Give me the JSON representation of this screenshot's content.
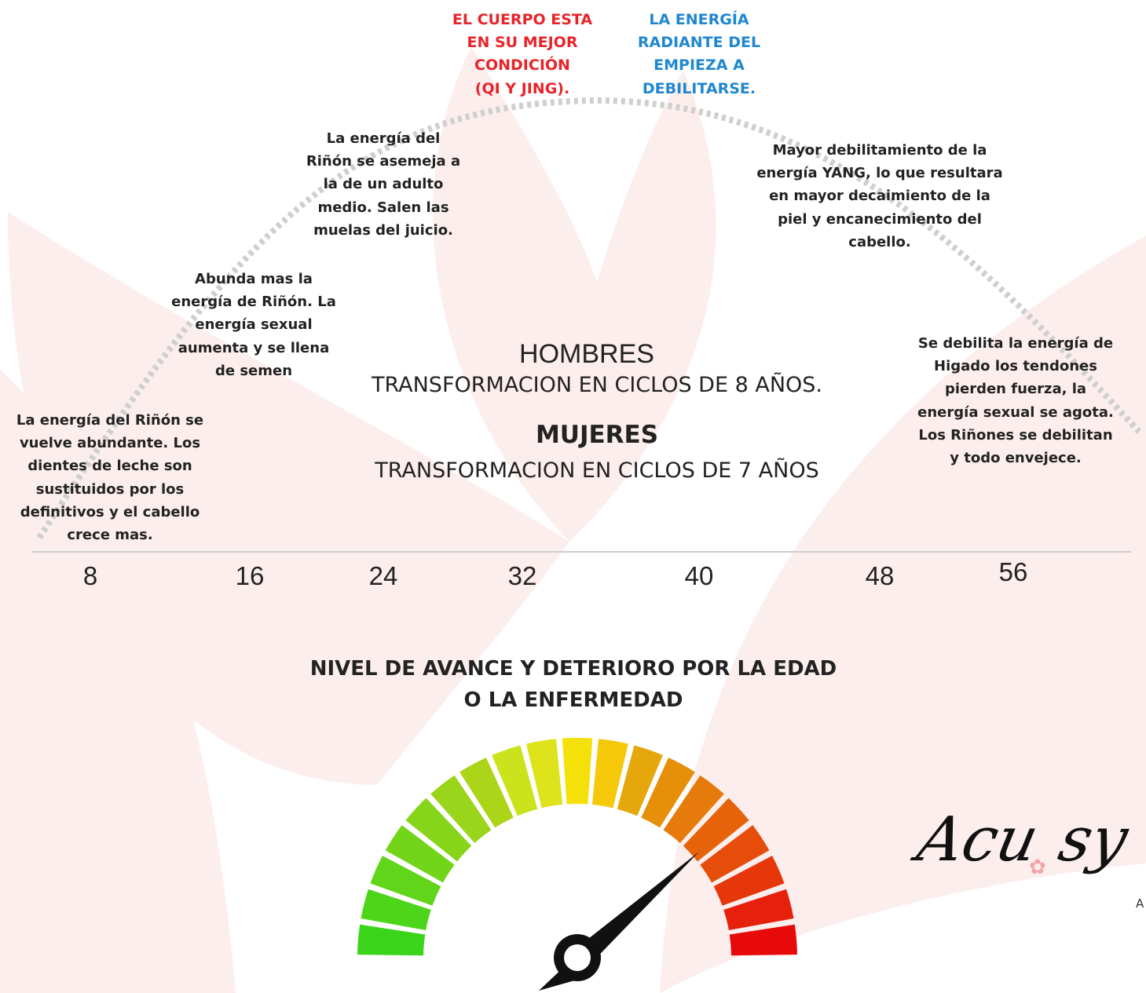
{
  "peak": {
    "body": [
      "EL CUERPO ESTA",
      "EN SU MEJOR",
      "CONDICIÓN",
      "(QI Y JING)."
    ],
    "energy": [
      "LA ENERGÍA",
      "RADIANTE DEL",
      "EMPIEZA A",
      "DEBILITARSE."
    ]
  },
  "annotations": [
    [
      "La energía del Riñón se",
      "vuelve abundante. Los",
      "dientes de leche son",
      "sustituidos por los",
      "definitivos y el cabello",
      "crece mas."
    ],
    [
      "Abunda mas la",
      "energía de Riñón. La",
      "energía sexual",
      "aumenta y se llena",
      "de semen"
    ],
    [
      "La energía del",
      "Riñón se asemeja a",
      "la de un adulto",
      "medio. Salen las",
      "muelas del juicio."
    ],
    [
      "Mayor debilitamiento de la",
      "energía YANG, lo que resultara",
      "en mayor decaimiento de la",
      "piel y encanecimiento del",
      "cabello."
    ],
    [
      "Se debilita la energía de",
      "Higado los tendones",
      "pierden fuerza, la",
      "energía sexual se agota.",
      "Los Riñones se debilitan",
      "y todo envejece."
    ]
  ],
  "center": {
    "men_title": "HOMBRES",
    "men_subtitle": "TRANSFORMACION EN CICLOS DE 8 AÑOS.",
    "women_title": "MUJERES",
    "women_subtitle": "TRANSFORMACION EN CICLOS DE 7 AÑOS"
  },
  "ages": [
    8,
    16,
    24,
    32,
    40,
    48,
    56
  ],
  "gauge_title": [
    "NIVEL DE AVANCE Y DETERIORO POR LA EDAD",
    "O LA ENFERMEDAD"
  ],
  "logo": {
    "left": "Acu",
    "right": "sy",
    "tag": "A"
  }
}
